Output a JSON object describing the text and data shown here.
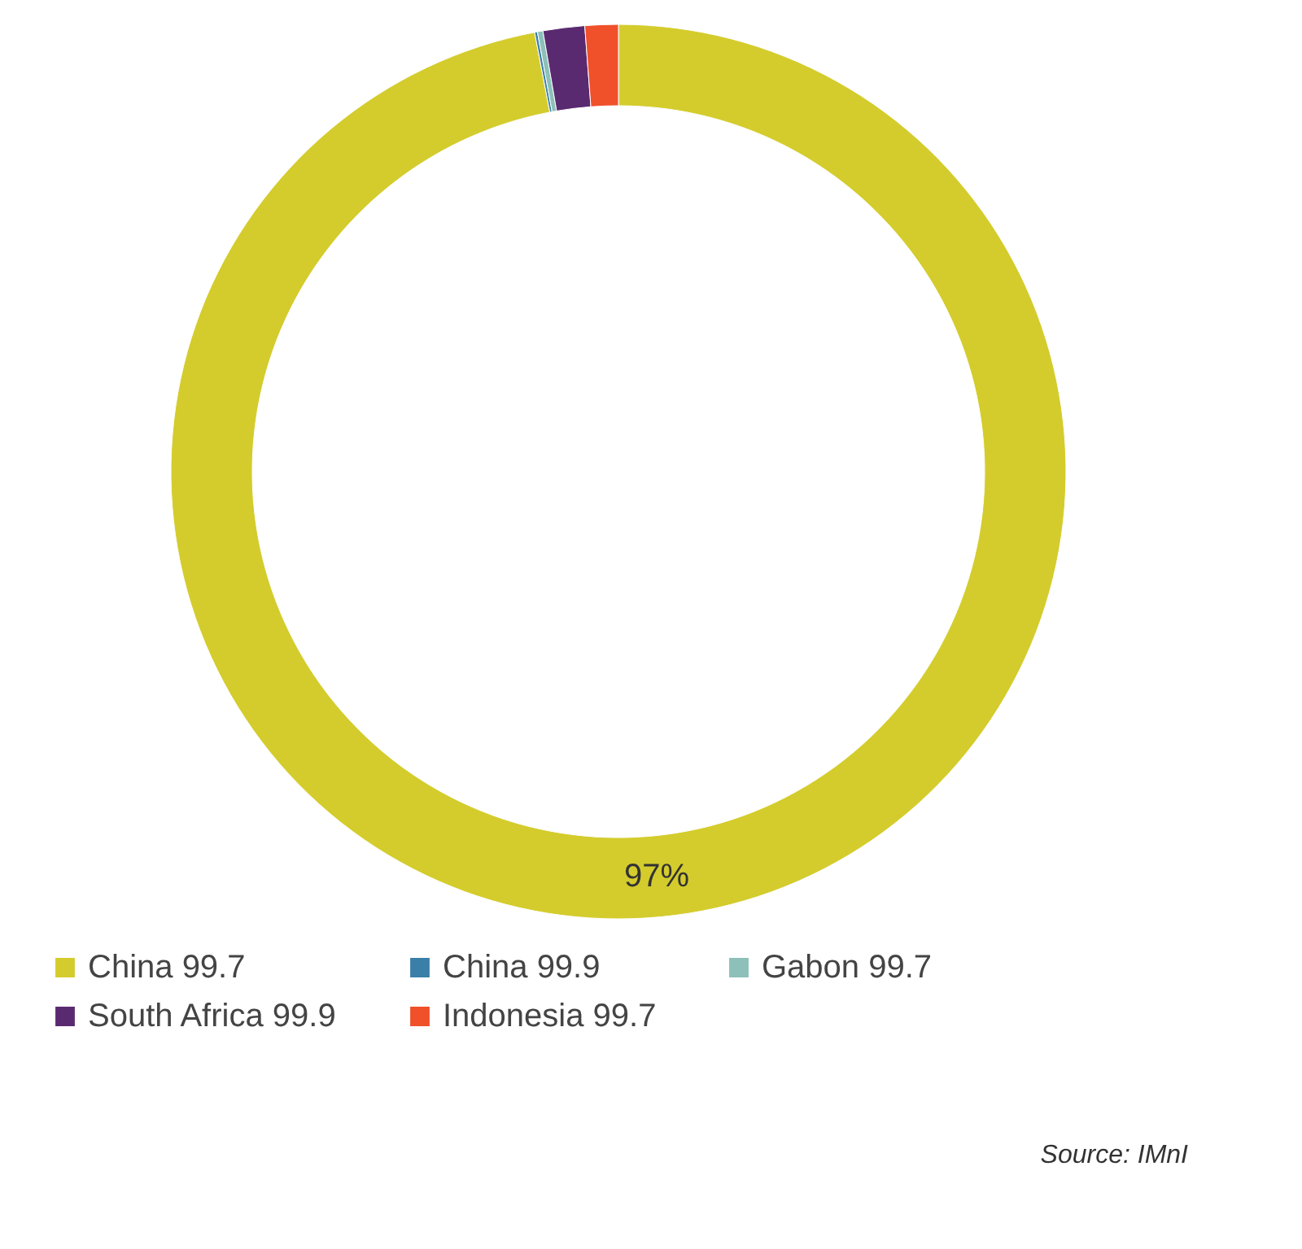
{
  "chart_data": {
    "type": "donut",
    "categories": [
      "China 99.7",
      "China 99.9",
      "Gabon 99.7",
      "South Africa 99.9",
      "Indonesia 99.7"
    ],
    "values": [
      97.0,
      0.1,
      0.2,
      1.5,
      1.2
    ],
    "colors": [
      "#d4cc2c",
      "#3a7fa8",
      "#8cc0b8",
      "#5a2a70",
      "#f0502a"
    ],
    "value_labels": [
      "97%",
      null,
      null,
      null,
      null
    ],
    "legend": "bottom",
    "annotations": [
      "Source:  IMnI"
    ]
  }
}
